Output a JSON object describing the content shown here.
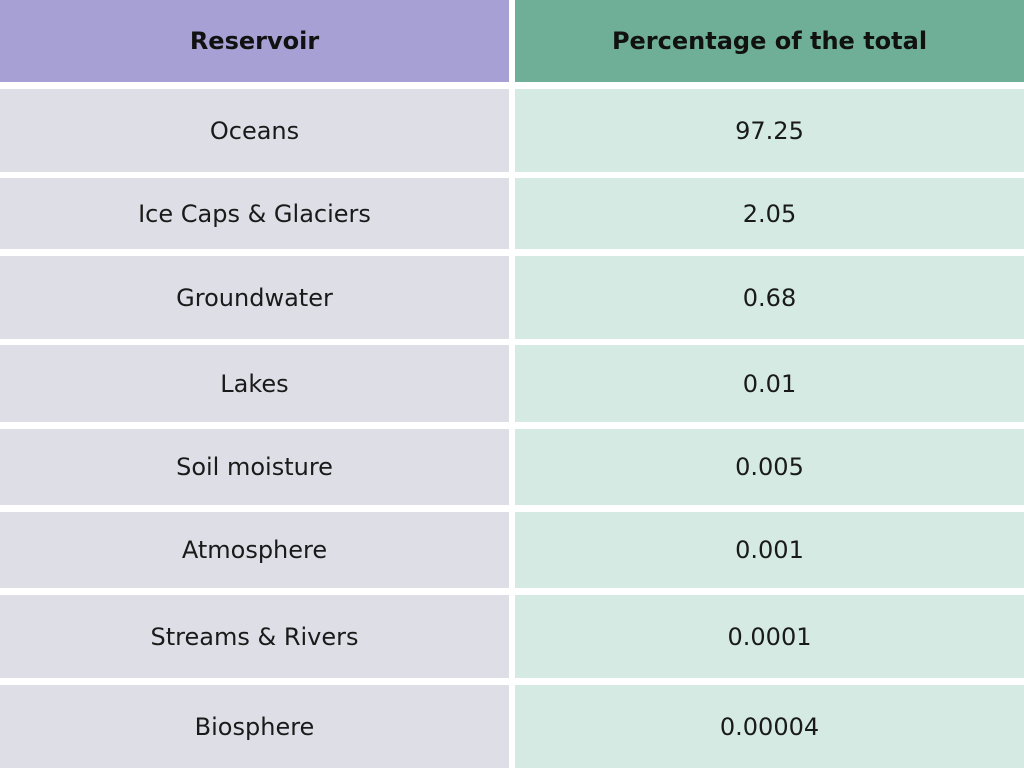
{
  "table": {
    "headers": {
      "reservoir": "Reservoir",
      "percentage": "Percentage of the total"
    },
    "rows": [
      {
        "reservoir": "Oceans",
        "percentage": "97.25"
      },
      {
        "reservoir": "Ice Caps & Glaciers",
        "percentage": "2.05"
      },
      {
        "reservoir": "Groundwater",
        "percentage": "0.68"
      },
      {
        "reservoir": "Lakes",
        "percentage": "0.01"
      },
      {
        "reservoir": "Soil moisture",
        "percentage": "0.005"
      },
      {
        "reservoir": "Atmosphere",
        "percentage": "0.001"
      },
      {
        "reservoir": "Streams & Rivers",
        "percentage": "0.0001"
      },
      {
        "reservoir": "Biosphere",
        "percentage": "0.00004"
      }
    ]
  },
  "colors": {
    "header_left": "#a7a0d5",
    "header_right": "#6fae97",
    "body_left": "#dedee6",
    "body_right": "#d4eae3"
  }
}
